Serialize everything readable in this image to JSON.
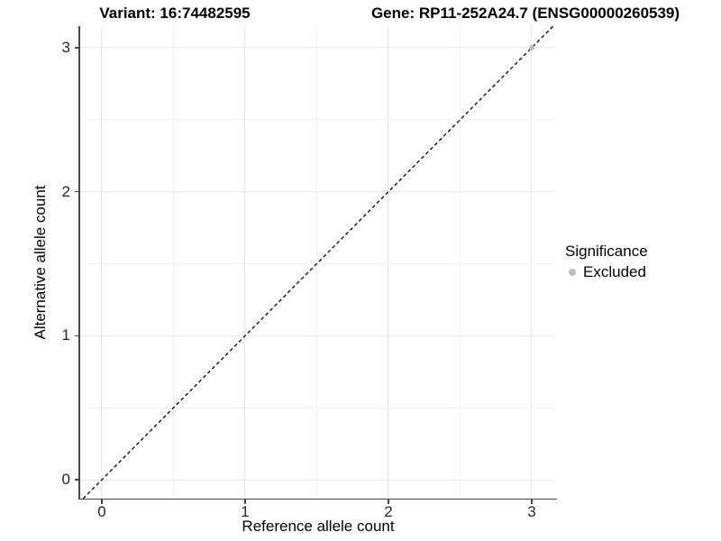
{
  "header": {
    "variant_title": "Variant: 16:74482595",
    "gene_title": "Gene: RP11-252A24.7 (ENSG00000260539)"
  },
  "chart_data": {
    "type": "scatter",
    "title": "Variant: 16:74482595 | Gene: RP11-252A24.7 (ENSG00000260539)",
    "xlabel": "Reference allele count",
    "ylabel": "Alternative allele count",
    "xlim": [
      -0.157,
      3.17
    ],
    "ylim": [
      -0.131,
      3.15
    ],
    "x_ticks": [
      0,
      1,
      2,
      3
    ],
    "y_ticks": [
      0,
      1,
      2,
      3
    ],
    "grid": {
      "major": true,
      "minor": true
    },
    "reference_line": {
      "kind": "identity y=x",
      "style": "dashed",
      "color": "#000000"
    },
    "legend_position": "right",
    "series": [
      {
        "name": "Excluded",
        "color": "#bdbdbd",
        "points": [
          {
            "x": 3,
            "y": 3
          }
        ]
      }
    ]
  },
  "legend": {
    "title": "Significance",
    "items": [
      {
        "label": "Excluded",
        "color": "#bdbdbd",
        "marker": "circle"
      }
    ]
  },
  "colors": {
    "background": "#ffffff",
    "grid_major": "#e6e6e6",
    "grid_minor": "#f2f2f2",
    "axis_line": "#474747",
    "tick_label": "#262626",
    "title_text": "#000000",
    "point": "#bdbdbd",
    "dashed_line": "#000000"
  }
}
